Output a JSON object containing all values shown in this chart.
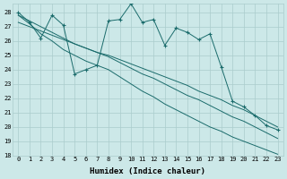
{
  "title": "",
  "xlabel": "Humidex (Indice chaleur)",
  "ylabel": "",
  "bg_color": "#cce8e8",
  "grid_color": "#aacccc",
  "line_color": "#1a6b6b",
  "ylim": [
    18,
    28.6
  ],
  "xlim": [
    -0.5,
    23.5
  ],
  "yticks": [
    18,
    19,
    20,
    21,
    22,
    23,
    24,
    25,
    26,
    27,
    28
  ],
  "xticks": [
    0,
    1,
    2,
    3,
    4,
    5,
    6,
    7,
    8,
    9,
    10,
    11,
    12,
    13,
    14,
    15,
    16,
    17,
    18,
    19,
    20,
    21,
    22,
    23
  ],
  "xtick_labels": [
    "0",
    "1",
    "2",
    "3",
    "4",
    "5",
    "6",
    "7",
    "8",
    "9",
    "10",
    "11",
    "12",
    "13",
    "14",
    "15",
    "16",
    "17",
    "18",
    "19",
    "20",
    "21",
    "22",
    "23"
  ],
  "main_line": [
    28.0,
    27.3,
    26.2,
    27.8,
    27.1,
    23.7,
    24.0,
    24.3,
    27.4,
    27.5,
    28.6,
    27.3,
    27.5,
    25.7,
    26.9,
    26.6,
    26.1,
    26.5,
    24.2,
    21.8,
    21.4,
    20.8,
    20.1,
    19.8
  ],
  "trend1": [
    27.8,
    27.2,
    26.5,
    26.0,
    25.4,
    25.0,
    24.6,
    24.3,
    24.0,
    23.5,
    23.0,
    22.5,
    22.1,
    21.6,
    21.2,
    20.8,
    20.4,
    20.0,
    19.7,
    19.3,
    19.0,
    18.7,
    18.4,
    18.1
  ],
  "trend2": [
    27.8,
    27.4,
    27.0,
    26.6,
    26.2,
    25.8,
    25.5,
    25.2,
    24.9,
    24.5,
    24.1,
    23.7,
    23.4,
    23.0,
    22.6,
    22.2,
    21.9,
    21.5,
    21.1,
    20.7,
    20.4,
    20.0,
    19.6,
    19.2
  ],
  "trend3": [
    27.3,
    27.0,
    26.7,
    26.4,
    26.1,
    25.8,
    25.5,
    25.2,
    25.0,
    24.7,
    24.4,
    24.1,
    23.8,
    23.5,
    23.2,
    22.9,
    22.5,
    22.2,
    21.9,
    21.5,
    21.2,
    20.8,
    20.4,
    20.0
  ]
}
